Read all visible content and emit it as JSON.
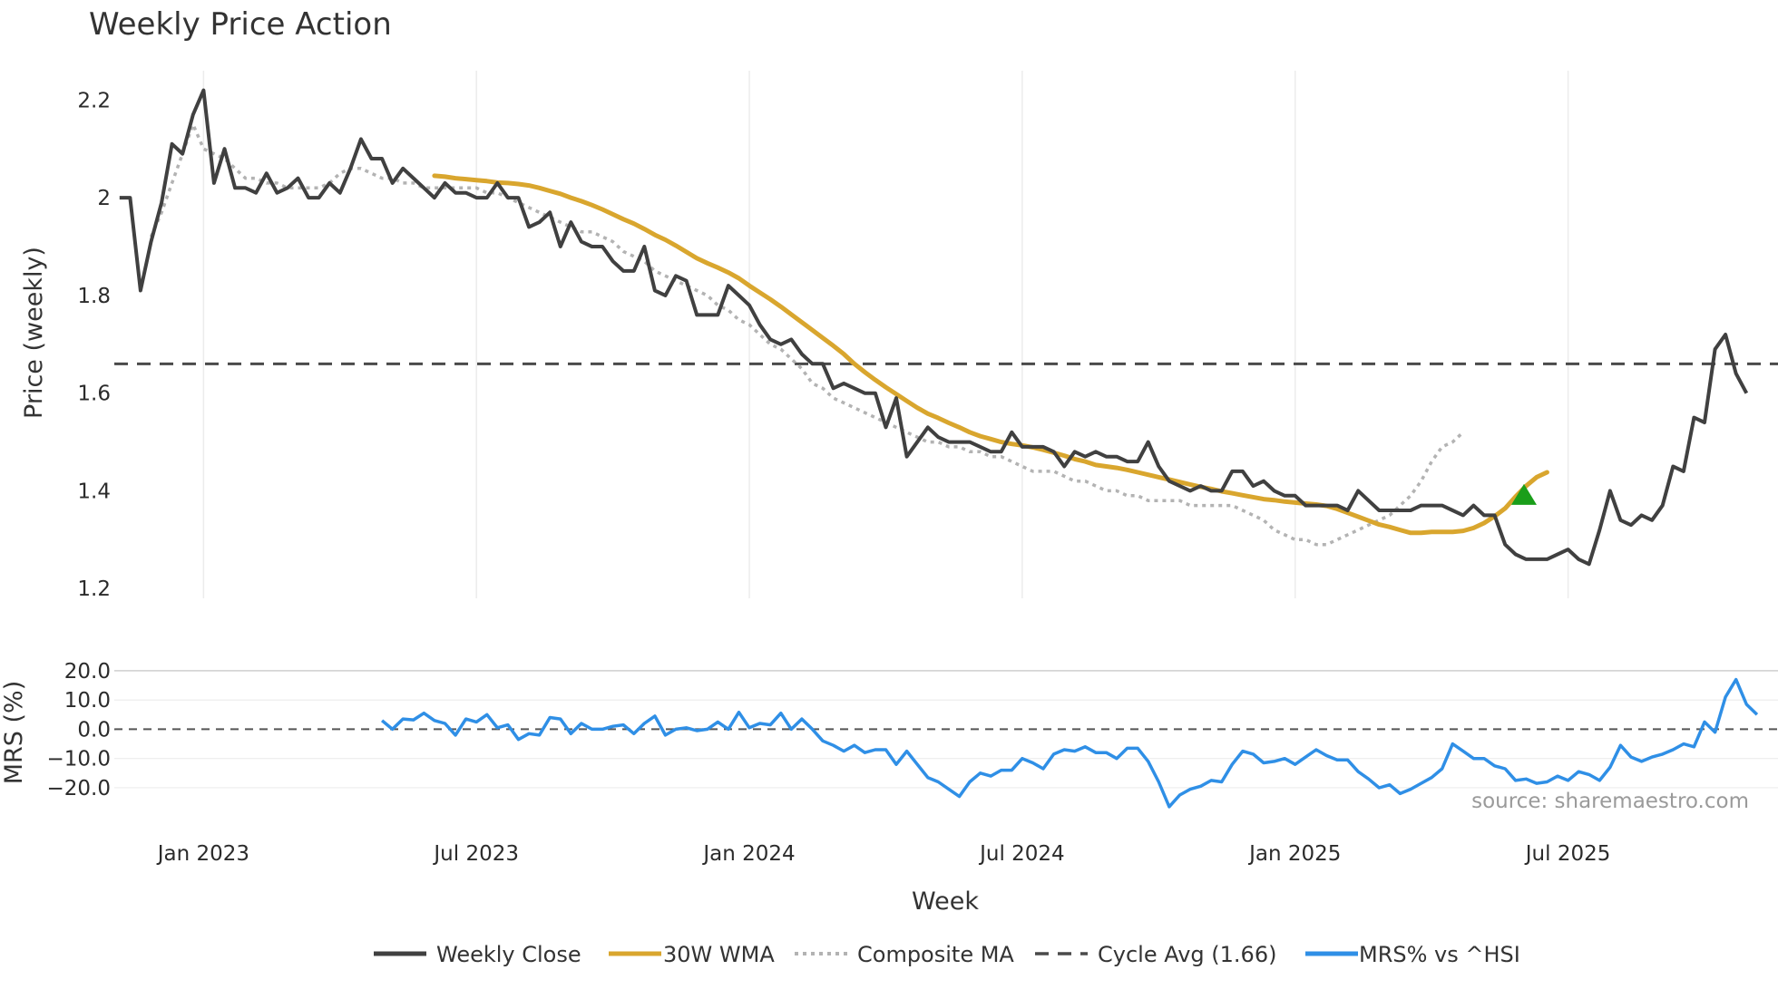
{
  "chart_data": {
    "type": "line",
    "title": "Weekly Price Action",
    "xlabel": "Week",
    "x_ticks": [
      "Jan 2023",
      "Jul 2023",
      "Jan 2024",
      "Jul 2024",
      "Jan 2025",
      "Jul 2025"
    ],
    "x_tick_weeks": [
      0,
      26,
      52,
      78,
      104,
      130
    ],
    "x_range": [
      -8.5,
      150
    ],
    "price_panel": {
      "ylabel": "Price (weekly)",
      "ylim": [
        1.18,
        2.26
      ],
      "y_ticks": [
        1.2,
        1.4,
        1.6,
        1.8,
        2.0,
        2.2
      ],
      "y_tick_labels": [
        "1.2",
        "1.4",
        "1.6",
        "1.8",
        "2",
        "2.2"
      ],
      "cycle_avg": 1.66
    },
    "mrs_panel": {
      "ylabel": "MRS (%)",
      "ylim": [
        -29,
        24
      ],
      "y_ticks": [
        -20,
        -10,
        0,
        10,
        20
      ],
      "y_tick_labels": [
        "−20.0",
        "−10.0",
        "0.0",
        "10.0",
        "20.0"
      ]
    },
    "series": [
      {
        "name": "Weekly Close",
        "color": "#404040",
        "x_start": -8,
        "values": [
          2.0,
          2.0,
          1.81,
          1.91,
          1.99,
          2.11,
          2.09,
          2.17,
          2.22,
          2.03,
          2.1,
          2.02,
          2.02,
          2.01,
          2.05,
          2.01,
          2.02,
          2.04,
          2.0,
          2.0,
          2.03,
          2.01,
          2.06,
          2.12,
          2.08,
          2.08,
          2.03,
          2.06,
          2.04,
          2.02,
          2.0,
          2.03,
          2.01,
          2.01,
          2.0,
          2.0,
          2.03,
          2.0,
          2.0,
          1.94,
          1.95,
          1.97,
          1.9,
          1.95,
          1.91,
          1.9,
          1.9,
          1.87,
          1.85,
          1.85,
          1.9,
          1.81,
          1.8,
          1.84,
          1.83,
          1.76,
          1.76,
          1.76,
          1.82,
          1.8,
          1.78,
          1.74,
          1.71,
          1.7,
          1.71,
          1.68,
          1.66,
          1.66,
          1.61,
          1.62,
          1.61,
          1.6,
          1.6,
          1.53,
          1.59,
          1.47,
          1.5,
          1.53,
          1.51,
          1.5,
          1.5,
          1.5,
          1.49,
          1.48,
          1.48,
          1.52,
          1.49,
          1.49,
          1.49,
          1.48,
          1.45,
          1.48,
          1.47,
          1.48,
          1.47,
          1.47,
          1.46,
          1.46,
          1.5,
          1.45,
          1.42,
          1.41,
          1.4,
          1.41,
          1.4,
          1.4,
          1.44,
          1.44,
          1.41,
          1.42,
          1.4,
          1.39,
          1.39,
          1.37,
          1.37,
          1.37,
          1.37,
          1.36,
          1.4,
          1.38,
          1.36,
          1.36,
          1.36,
          1.36,
          1.37,
          1.37,
          1.37,
          1.36,
          1.35,
          1.37,
          1.35,
          1.35,
          1.29,
          1.27,
          1.26,
          1.26,
          1.26,
          1.27,
          1.28,
          1.26,
          1.25,
          1.32,
          1.4,
          1.34,
          1.33,
          1.35,
          1.34,
          1.37,
          1.45,
          1.44,
          1.55,
          1.54,
          1.69,
          1.72,
          1.64,
          1.6
        ]
      },
      {
        "name": "30W WMA",
        "color": "#D9A62E",
        "x_start": 22,
        "values": [
          2.045,
          2.043,
          2.04,
          2.038,
          2.036,
          2.034,
          2.031,
          2.03,
          2.028,
          2.025,
          2.02,
          2.014,
          2.008,
          2.0,
          1.993,
          1.985,
          1.976,
          1.966,
          1.956,
          1.947,
          1.936,
          1.924,
          1.914,
          1.902,
          1.889,
          1.876,
          1.866,
          1.857,
          1.847,
          1.835,
          1.82,
          1.806,
          1.792,
          1.777,
          1.761,
          1.745,
          1.729,
          1.713,
          1.697,
          1.68,
          1.66,
          1.643,
          1.627,
          1.612,
          1.598,
          1.584,
          1.57,
          1.558,
          1.549,
          1.539,
          1.53,
          1.52,
          1.512,
          1.506,
          1.5,
          1.496,
          1.493,
          1.489,
          1.484,
          1.478,
          1.472,
          1.465,
          1.46,
          1.453,
          1.45,
          1.447,
          1.443,
          1.438,
          1.433,
          1.428,
          1.423,
          1.418,
          1.413,
          1.408,
          1.404,
          1.399,
          1.395,
          1.391,
          1.387,
          1.383,
          1.381,
          1.378,
          1.376,
          1.374,
          1.372,
          1.369,
          1.363,
          1.355,
          1.347,
          1.339,
          1.331,
          1.326,
          1.32,
          1.314,
          1.314,
          1.316,
          1.316,
          1.316,
          1.318,
          1.324,
          1.334,
          1.348,
          1.364,
          1.388,
          1.41,
          1.428,
          1.438
        ]
      },
      {
        "name": "Composite MA",
        "color": "#B3B3B3",
        "x_start": -5,
        "values": [
          1.92,
          1.97,
          2.03,
          2.09,
          2.15,
          2.1,
          2.09,
          2.08,
          2.06,
          2.04,
          2.04,
          2.03,
          2.03,
          2.02,
          2.02,
          2.02,
          2.02,
          2.03,
          2.05,
          2.06,
          2.06,
          2.05,
          2.04,
          2.04,
          2.03,
          2.03,
          2.02,
          2.02,
          2.02,
          2.02,
          2.02,
          2.02,
          2.01,
          2.01,
          2.0,
          1.99,
          1.98,
          1.97,
          1.96,
          1.95,
          1.94,
          1.93,
          1.93,
          1.92,
          1.91,
          1.89,
          1.88,
          1.87,
          1.85,
          1.84,
          1.83,
          1.82,
          1.81,
          1.8,
          1.78,
          1.77,
          1.75,
          1.74,
          1.72,
          1.7,
          1.69,
          1.67,
          1.65,
          1.62,
          1.61,
          1.59,
          1.58,
          1.57,
          1.56,
          1.55,
          1.54,
          1.53,
          1.52,
          1.51,
          1.5,
          1.5,
          1.49,
          1.49,
          1.48,
          1.48,
          1.47,
          1.47,
          1.46,
          1.45,
          1.44,
          1.44,
          1.44,
          1.43,
          1.42,
          1.42,
          1.41,
          1.4,
          1.4,
          1.39,
          1.39,
          1.38,
          1.38,
          1.38,
          1.38,
          1.37,
          1.37,
          1.37,
          1.37,
          1.37,
          1.36,
          1.35,
          1.34,
          1.32,
          1.31,
          1.3,
          1.3,
          1.29,
          1.29,
          1.3,
          1.31,
          1.32,
          1.33,
          1.34,
          1.35,
          1.37,
          1.39,
          1.42,
          1.46,
          1.49,
          1.5,
          1.52
        ]
      },
      {
        "name": "Cycle Avg (1.66)",
        "color": "#4a4a4a"
      },
      {
        "name": "MRS% vs ^HSI",
        "color": "#2F8FE6",
        "x_start": 17,
        "values": [
          3,
          0,
          3.5,
          3.2,
          5.5,
          3,
          2,
          -2,
          3.5,
          2.5,
          5,
          0.5,
          1.5,
          -3.5,
          -1.5,
          -2,
          4,
          3.5,
          -1.5,
          2,
          0,
          0,
          1,
          1.5,
          -1.5,
          2,
          4.5,
          -2,
          0,
          0.5,
          -0.5,
          0,
          2.5,
          0,
          5.8,
          0.5,
          2,
          1.5,
          5.5,
          0,
          3.5,
          0,
          -4,
          -5.5,
          -7.5,
          -5.5,
          -8,
          -7,
          -7,
          -12,
          -7.5,
          -12,
          -16.5,
          -18,
          -20.5,
          -23,
          -18,
          -15,
          -16,
          -14,
          -14,
          -10,
          -11.5,
          -13.5,
          -8.5,
          -7,
          -7.5,
          -6,
          -8,
          -8,
          -10,
          -6.5,
          -6.5,
          -11,
          -18,
          -26.5,
          -22.5,
          -20.5,
          -19.5,
          -17.5,
          -18,
          -12,
          -7.5,
          -8.5,
          -11.5,
          -11,
          -10,
          -12,
          -9.5,
          -7,
          -9,
          -10.5,
          -10.5,
          -14.5,
          -17,
          -20,
          -19,
          -22,
          -20.5,
          -18.5,
          -16.5,
          -13.5,
          -5,
          -7.5,
          -10,
          -10,
          -12.5,
          -13.5,
          -17.5,
          -17,
          -18.5,
          -18,
          -16,
          -17.5,
          -14.5,
          -15.5,
          -17.5,
          -13,
          -5.5,
          -9.5,
          -11,
          -9.5,
          -8.5,
          -7,
          -5,
          -6,
          2.5,
          -1,
          11,
          17,
          8.5,
          5
        ]
      }
    ],
    "marker": {
      "type": "triangle-up",
      "color": "#1A9E1A",
      "week": 125.8,
      "value": 1.388
    },
    "legend": {
      "position": "bottom-center",
      "entries": [
        {
          "label": "Weekly Close",
          "color": "#404040",
          "style": "solid"
        },
        {
          "label": "30W WMA",
          "color": "#D9A62E",
          "style": "solid"
        },
        {
          "label": "Composite MA",
          "color": "#B3B3B3",
          "style": "dotted"
        },
        {
          "label": "Cycle Avg (1.66)",
          "color": "#4a4a4a",
          "style": "dashed"
        },
        {
          "label": "MRS% vs ^HSI",
          "color": "#2F8FE6",
          "style": "solid"
        }
      ]
    },
    "annotation": "source: sharemaestro.com"
  }
}
